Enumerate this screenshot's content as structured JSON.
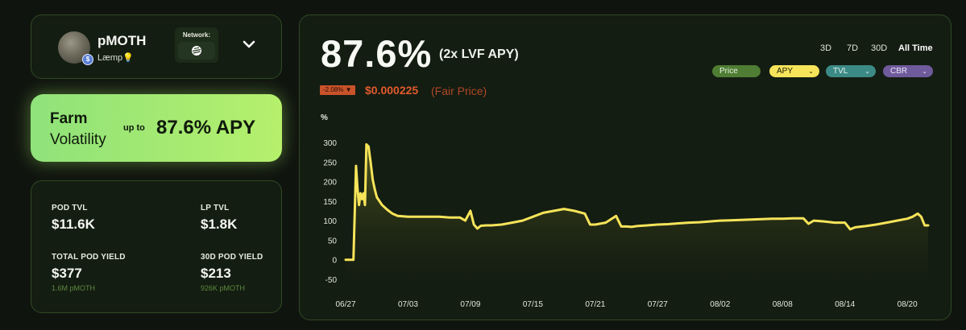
{
  "token": {
    "name": "pMOTH",
    "sub": "Læmp",
    "network_label": "Network:"
  },
  "farm": {
    "title": "Farm",
    "subtitle": "Volatility",
    "upto": "up to",
    "apy": "87.6% APY"
  },
  "stats": {
    "pod_tvl_label": "POD TVL",
    "pod_tvl_value": "$11.6K",
    "lp_tvl_label": "LP TVL",
    "lp_tvl_value": "$1.8K",
    "total_yield_label": "TOTAL POD YIELD",
    "total_yield_value": "$377",
    "total_yield_sub": "1.6M pMOTH",
    "yield_30d_label": "30D POD YIELD",
    "yield_30d_value": "$213",
    "yield_30d_sub": "926K pMOTH"
  },
  "header": {
    "apy_value": "87.6%",
    "apy_type": "(2x LVF APY)",
    "change": "-2.08%",
    "price": "$0.000225",
    "price_note": "(Fair Price)"
  },
  "ranges": [
    "3D",
    "7D",
    "30D",
    "All Time"
  ],
  "active_range": "All Time",
  "pills": {
    "price": "Price",
    "apy": "APY",
    "tvl": "TVL",
    "cbr": "CBR"
  },
  "colors": {
    "accent_green": "#b6f06c",
    "line_yellow": "#f6e45a",
    "price_red": "#e25a2d"
  },
  "chart_data": {
    "type": "area",
    "ylabel": "%",
    "y_ticks": [
      300,
      250,
      200,
      150,
      100,
      50,
      0,
      -50
    ],
    "ylim": [
      -50,
      300
    ],
    "x_ticks": [
      "06/27",
      "07/03",
      "07/09",
      "07/15",
      "07/21",
      "07/27",
      "08/02",
      "08/08",
      "08/14",
      "08/20"
    ],
    "xlim": [
      "06/27",
      "08/22"
    ],
    "series": [
      {
        "x": [
          "06/27",
          "06/27",
          "06/27",
          "06/27",
          "06/28",
          "06/28",
          "06/28",
          "06/28",
          "06/28",
          "06/28",
          "06/28",
          "06/29",
          "06/29",
          "06/29",
          "06/29",
          "06/29",
          "06/30",
          "06/30",
          "07/01",
          "07/01",
          "07/02",
          "07/03",
          "07/04",
          "07/05",
          "07/06",
          "07/07",
          "07/08",
          "07/08",
          "07/09",
          "07/09",
          "07/09",
          "07/10",
          "07/10",
          "07/11",
          "07/12",
          "07/13",
          "07/14",
          "07/15",
          "07/16",
          "07/17",
          "07/18",
          "07/19",
          "07/20",
          "07/20",
          "07/21",
          "07/22",
          "07/23",
          "07/23",
          "07/24",
          "07/24",
          "07/25",
          "07/26",
          "07/27",
          "07/28",
          "07/29",
          "07/30",
          "07/31",
          "08/01",
          "08/02",
          "08/03",
          "08/04",
          "08/05",
          "08/06",
          "08/07",
          "08/08",
          "08/09",
          "08/10",
          "08/10",
          "08/11",
          "08/12",
          "08/13",
          "08/14",
          "08/14",
          "08/15",
          "08/16",
          "08/17",
          "08/18",
          "08/19",
          "08/20",
          "08/20",
          "08/21",
          "08/21",
          "08/21",
          "08/22"
        ],
        "y": [
          0,
          0,
          0,
          0,
          240,
          180,
          140,
          170,
          155,
          170,
          140,
          295,
          290,
          250,
          205,
          180,
          160,
          140,
          128,
          118,
          112,
          110,
          110,
          110,
          110,
          108,
          108,
          100,
          125,
          90,
          80,
          87,
          88,
          88,
          90,
          95,
          100,
          110,
          120,
          125,
          130,
          125,
          118,
          90,
          90,
          95,
          112,
          85,
          85,
          84,
          86,
          88,
          90,
          91,
          93,
          95,
          96,
          98,
          100,
          101,
          102,
          103,
          104,
          105,
          105,
          106,
          106,
          92,
          100,
          98,
          95,
          95,
          78,
          83,
          86,
          90,
          95,
          100,
          105,
          110,
          118,
          110,
          88,
          88
        ]
      }
    ]
  }
}
